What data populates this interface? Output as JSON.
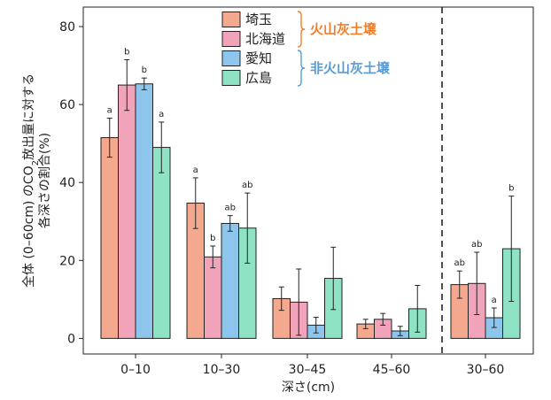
{
  "chart_data": {
    "type": "bar",
    "ylabel_lines": [
      "全体 (0–60cm) のCO",
      "2",
      "放出量に対する",
      "各深さの割合(%)"
    ],
    "xlabel": "深さ(cm)",
    "ylim": [
      -4,
      85
    ],
    "yticks": [
      0,
      20,
      40,
      60,
      80
    ],
    "grid": false,
    "categories": [
      "0–10",
      "10–30",
      "30–45",
      "45–60",
      "30–60"
    ],
    "series": [
      {
        "name": "埼玉",
        "color": "#f4a98e",
        "values": [
          51.5,
          34.7,
          10.2,
          3.7,
          13.8
        ],
        "errors": [
          5.0,
          6.5,
          3.0,
          1.2,
          3.5
        ],
        "letters": [
          "a",
          "a",
          "",
          "",
          "ab"
        ]
      },
      {
        "name": "北海道",
        "color": "#f1a3b9",
        "values": [
          65.0,
          20.9,
          9.3,
          4.9,
          14.1
        ],
        "errors": [
          6.5,
          2.8,
          8.5,
          1.5,
          8.0
        ],
        "letters": [
          "b",
          "b",
          "",
          "",
          "ab"
        ]
      },
      {
        "name": "愛知",
        "color": "#8ec5ec",
        "values": [
          65.3,
          29.5,
          3.4,
          1.9,
          5.3
        ],
        "errors": [
          1.5,
          2.0,
          2.0,
          1.2,
          2.5
        ],
        "letters": [
          "b",
          "ab",
          "",
          "",
          "a"
        ]
      },
      {
        "name": "広島",
        "color": "#8ee3c4",
        "values": [
          49.0,
          28.3,
          15.4,
          7.6,
          23.0
        ],
        "errors": [
          6.5,
          9.0,
          8.0,
          6.0,
          13.5
        ],
        "letters": [
          "a",
          "ab",
          "",
          "",
          "b"
        ]
      }
    ],
    "legend": {
      "placement": "top-center",
      "groups": [
        {
          "label": "火山灰土壌",
          "color": "#f07f2c"
        },
        {
          "label": "非火山灰土壌",
          "color": "#5b9bd5"
        }
      ]
    },
    "divider_after_category_index": 3
  }
}
